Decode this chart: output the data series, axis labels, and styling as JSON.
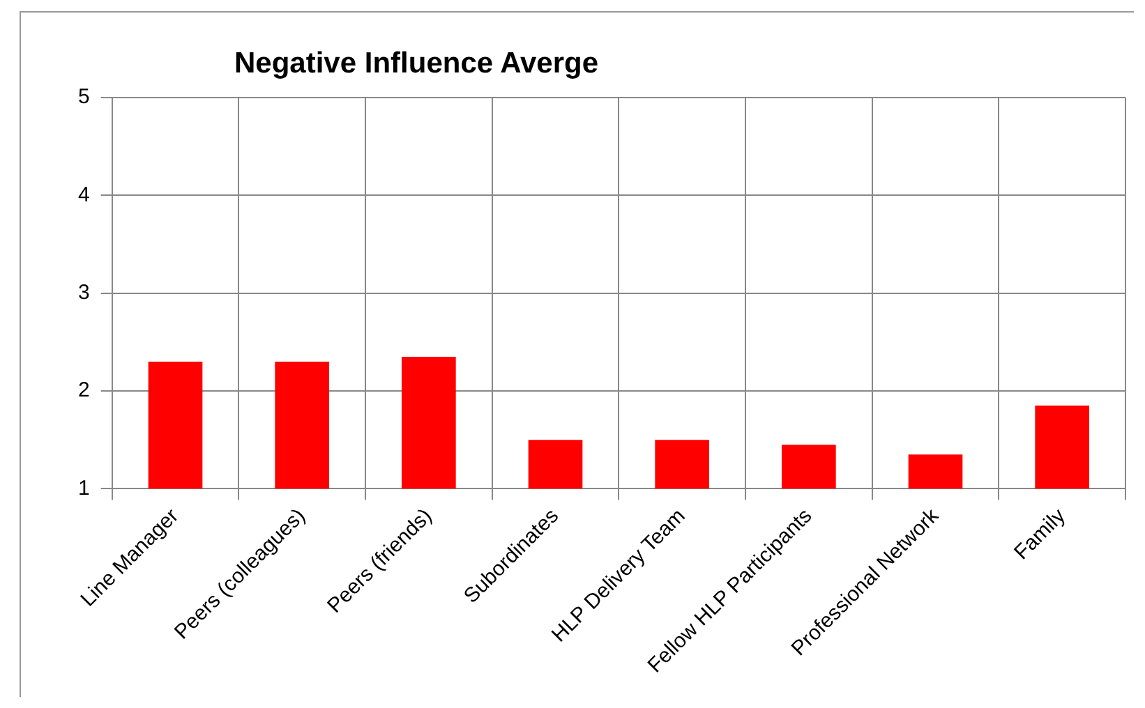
{
  "chart_data": {
    "type": "bar",
    "title": "Negative Influence Averge",
    "categories": [
      "Line Manager",
      "Peers (colleagues)",
      "Peers (friends)",
      "Subordinates",
      "HLP Delivery Team",
      "Fellow HLP Participants",
      "Professional Network",
      "Family"
    ],
    "values": [
      2.3,
      2.3,
      2.35,
      1.5,
      1.5,
      1.45,
      1.35,
      1.85
    ],
    "color": "#ff0000",
    "ylim": [
      1,
      5
    ],
    "yticks": [
      1,
      2,
      3,
      4,
      5
    ],
    "grid": true,
    "legend": false
  }
}
